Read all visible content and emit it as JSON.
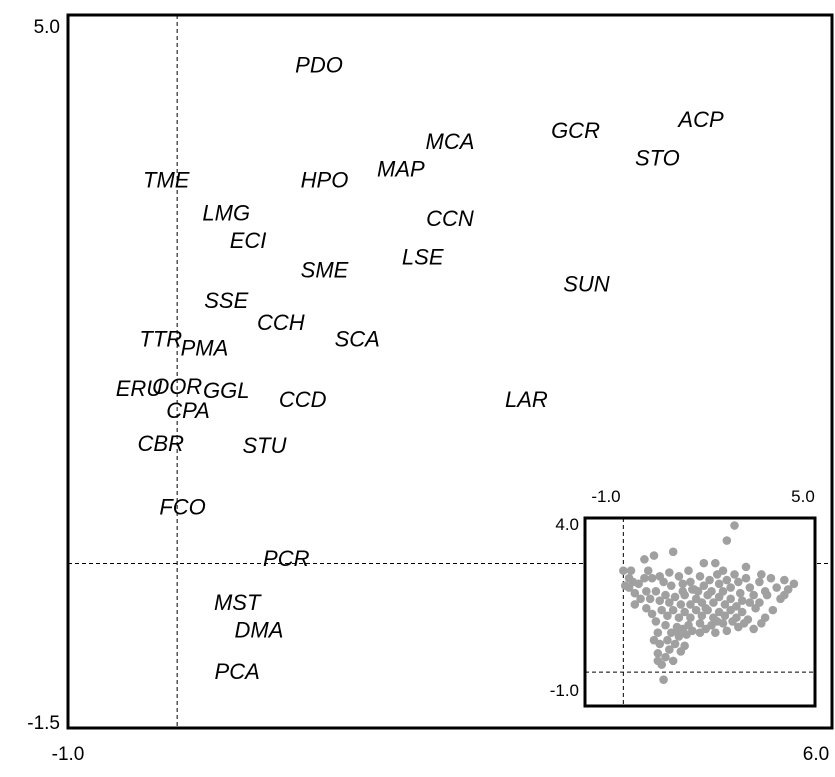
{
  "chart_data": [
    {
      "type": "scatter",
      "title": "",
      "xlabel": "",
      "ylabel": "",
      "xlim": [
        -1.0,
        6.0
      ],
      "ylim": [
        -1.5,
        5.0
      ],
      "x_ticks": [
        "-1.0",
        "6.0"
      ],
      "y_ticks": [
        "-1.5",
        "5.0"
      ],
      "reference_lines": {
        "x": 0.0,
        "y": 0.0
      },
      "marker_style": "text-label",
      "points": [
        {
          "label": "PDO",
          "x": 1.3,
          "y": 4.55
        },
        {
          "label": "ACP",
          "x": 4.8,
          "y": 4.05
        },
        {
          "label": "GCR",
          "x": 3.65,
          "y": 3.95
        },
        {
          "label": "MCA",
          "x": 2.5,
          "y": 3.85
        },
        {
          "label": "STO",
          "x": 4.4,
          "y": 3.7
        },
        {
          "label": "MAP",
          "x": 2.05,
          "y": 3.6
        },
        {
          "label": "TME",
          "x": -0.1,
          "y": 3.5
        },
        {
          "label": "HPO",
          "x": 1.35,
          "y": 3.5
        },
        {
          "label": "LMG",
          "x": 0.45,
          "y": 3.2
        },
        {
          "label": "CCN",
          "x": 2.5,
          "y": 3.15
        },
        {
          "label": "ECI",
          "x": 0.65,
          "y": 2.95
        },
        {
          "label": "LSE",
          "x": 2.25,
          "y": 2.8
        },
        {
          "label": "SME",
          "x": 1.35,
          "y": 2.68
        },
        {
          "label": "SUN",
          "x": 3.75,
          "y": 2.55
        },
        {
          "label": "SSE",
          "x": 0.45,
          "y": 2.4
        },
        {
          "label": "CCH",
          "x": 0.95,
          "y": 2.2
        },
        {
          "label": "TTR",
          "x": -0.15,
          "y": 2.05
        },
        {
          "label": "SCA",
          "x": 1.65,
          "y": 2.05
        },
        {
          "label": "PMA",
          "x": 0.25,
          "y": 1.97
        },
        {
          "label": "ERU",
          "x": -0.35,
          "y": 1.6
        },
        {
          "label": "OOR",
          "x": 0.0,
          "y": 1.62
        },
        {
          "label": "GGL",
          "x": 0.45,
          "y": 1.58
        },
        {
          "label": "CCD",
          "x": 1.15,
          "y": 1.5
        },
        {
          "label": "LAR",
          "x": 3.2,
          "y": 1.5
        },
        {
          "label": "CPA",
          "x": 0.1,
          "y": 1.4
        },
        {
          "label": "CBR",
          "x": -0.15,
          "y": 1.1
        },
        {
          "label": "STU",
          "x": 0.8,
          "y": 1.08
        },
        {
          "label": "FCO",
          "x": 0.05,
          "y": 0.52
        },
        {
          "label": "PCR",
          "x": 1.0,
          "y": 0.05
        },
        {
          "label": "MST",
          "x": 0.55,
          "y": -0.35
        },
        {
          "label": "DMA",
          "x": 0.75,
          "y": -0.6
        },
        {
          "label": "PCA",
          "x": 0.55,
          "y": -0.98
        }
      ]
    },
    {
      "type": "scatter",
      "title": "",
      "xlim": [
        -1.0,
        5.0
      ],
      "ylim": [
        -1.0,
        4.0
      ],
      "x_ticks": [
        "-1.0",
        "5.0"
      ],
      "y_ticks": [
        "4.0",
        "-1.0"
      ],
      "reference_lines": {
        "x": 0.0,
        "y": -0.1
      },
      "marker_color": "#a0a0a0",
      "points": [
        {
          "x": 2.9,
          "y": 3.8
        },
        {
          "x": 2.7,
          "y": 3.4
        },
        {
          "x": 1.3,
          "y": 3.1
        },
        {
          "x": 0.8,
          "y": 3.0
        },
        {
          "x": 2.4,
          "y": 2.8
        },
        {
          "x": 2.1,
          "y": 2.8
        },
        {
          "x": 3.2,
          "y": 2.7
        },
        {
          "x": 2.6,
          "y": 2.6
        },
        {
          "x": 3.6,
          "y": 2.5
        },
        {
          "x": 0.55,
          "y": 2.9
        },
        {
          "x": 0.2,
          "y": 2.6
        },
        {
          "x": 0.0,
          "y": 2.6
        },
        {
          "x": 0.15,
          "y": 2.4
        },
        {
          "x": 0.4,
          "y": 2.25
        },
        {
          "x": 0.55,
          "y": 2.4
        },
        {
          "x": 0.65,
          "y": 2.6
        },
        {
          "x": 0.75,
          "y": 2.4
        },
        {
          "x": 0.95,
          "y": 2.45
        },
        {
          "x": 1.05,
          "y": 2.3
        },
        {
          "x": 1.2,
          "y": 2.55
        },
        {
          "x": 1.25,
          "y": 2.2
        },
        {
          "x": 1.45,
          "y": 2.45
        },
        {
          "x": 1.55,
          "y": 2.25
        },
        {
          "x": 1.7,
          "y": 2.6
        },
        {
          "x": 1.75,
          "y": 2.3
        },
        {
          "x": 1.85,
          "y": 2.1
        },
        {
          "x": 2.0,
          "y": 2.45
        },
        {
          "x": 2.1,
          "y": 2.2
        },
        {
          "x": 2.25,
          "y": 2.35
        },
        {
          "x": 2.3,
          "y": 2.05
        },
        {
          "x": 2.45,
          "y": 2.5
        },
        {
          "x": 2.5,
          "y": 2.25
        },
        {
          "x": 2.6,
          "y": 2.05
        },
        {
          "x": 2.7,
          "y": 2.35
        },
        {
          "x": 2.8,
          "y": 2.15
        },
        {
          "x": 2.9,
          "y": 2.5
        },
        {
          "x": 3.0,
          "y": 2.3
        },
        {
          "x": 3.05,
          "y": 2.0
        },
        {
          "x": 3.2,
          "y": 2.4
        },
        {
          "x": 3.3,
          "y": 2.15
        },
        {
          "x": 3.4,
          "y": 1.95
        },
        {
          "x": 3.55,
          "y": 2.3
        },
        {
          "x": 3.7,
          "y": 2.05
        },
        {
          "x": 3.85,
          "y": 2.4
        },
        {
          "x": 4.0,
          "y": 2.15
        },
        {
          "x": 4.2,
          "y": 2.35
        },
        {
          "x": 4.45,
          "y": 2.25
        },
        {
          "x": 4.1,
          "y": 1.85
        },
        {
          "x": 3.9,
          "y": 1.55
        },
        {
          "x": 3.7,
          "y": 1.35
        },
        {
          "x": 3.45,
          "y": 1.6
        },
        {
          "x": 3.3,
          "y": 1.75
        },
        {
          "x": 3.1,
          "y": 1.8
        },
        {
          "x": 2.95,
          "y": 1.65
        },
        {
          "x": 2.8,
          "y": 1.85
        },
        {
          "x": 2.65,
          "y": 1.7
        },
        {
          "x": 2.5,
          "y": 1.9
        },
        {
          "x": 2.35,
          "y": 1.75
        },
        {
          "x": 2.2,
          "y": 1.95
        },
        {
          "x": 2.05,
          "y": 1.75
        },
        {
          "x": 1.9,
          "y": 1.85
        },
        {
          "x": 1.75,
          "y": 1.7
        },
        {
          "x": 1.6,
          "y": 1.95
        },
        {
          "x": 1.5,
          "y": 1.7
        },
        {
          "x": 1.35,
          "y": 1.9
        },
        {
          "x": 1.2,
          "y": 1.75
        },
        {
          "x": 1.1,
          "y": 1.95
        },
        {
          "x": 0.95,
          "y": 1.8
        },
        {
          "x": 0.85,
          "y": 2.05
        },
        {
          "x": 0.7,
          "y": 1.85
        },
        {
          "x": 0.6,
          "y": 2.05
        },
        {
          "x": 0.3,
          "y": 2.0
        },
        {
          "x": 0.45,
          "y": 1.85
        },
        {
          "x": 1.0,
          "y": 1.55
        },
        {
          "x": 1.15,
          "y": 1.4
        },
        {
          "x": 1.3,
          "y": 1.55
        },
        {
          "x": 1.45,
          "y": 1.35
        },
        {
          "x": 1.6,
          "y": 1.5
        },
        {
          "x": 1.75,
          "y": 1.35
        },
        {
          "x": 1.9,
          "y": 1.55
        },
        {
          "x": 2.05,
          "y": 1.4
        },
        {
          "x": 2.2,
          "y": 1.55
        },
        {
          "x": 2.35,
          "y": 1.35
        },
        {
          "x": 2.5,
          "y": 1.5
        },
        {
          "x": 2.65,
          "y": 1.4
        },
        {
          "x": 2.8,
          "y": 1.55
        },
        {
          "x": 2.95,
          "y": 1.35
        },
        {
          "x": 3.1,
          "y": 1.5
        },
        {
          "x": 3.25,
          "y": 1.3
        },
        {
          "x": 2.6,
          "y": 1.2
        },
        {
          "x": 2.3,
          "y": 1.15
        },
        {
          "x": 2.0,
          "y": 1.2
        },
        {
          "x": 1.7,
          "y": 1.15
        },
        {
          "x": 1.4,
          "y": 1.1
        },
        {
          "x": 1.1,
          "y": 1.15
        },
        {
          "x": 1.25,
          "y": 0.95
        },
        {
          "x": 1.45,
          "y": 0.85
        },
        {
          "x": 1.15,
          "y": 0.75
        },
        {
          "x": 1.35,
          "y": 0.65
        },
        {
          "x": 0.95,
          "y": 0.65
        },
        {
          "x": 1.2,
          "y": 0.5
        },
        {
          "x": 1.5,
          "y": 0.45
        },
        {
          "x": 0.9,
          "y": 0.4
        },
        {
          "x": 1.1,
          "y": 0.3
        },
        {
          "x": 1.3,
          "y": 0.2
        },
        {
          "x": 1.0,
          "y": 0.1
        },
        {
          "x": 1.45,
          "y": 0.95
        },
        {
          "x": 1.55,
          "y": 1.05
        },
        {
          "x": 1.65,
          "y": 0.9
        },
        {
          "x": 1.8,
          "y": 1.0
        },
        {
          "x": 2.0,
          "y": 0.95
        },
        {
          "x": 2.15,
          "y": 1.05
        },
        {
          "x": 2.4,
          "y": 0.95
        },
        {
          "x": 2.7,
          "y": 1.0
        },
        {
          "x": 3.4,
          "y": 1.05
        },
        {
          "x": 3.6,
          "y": 1.2
        },
        {
          "x": 1.05,
          "y": -0.3
        },
        {
          "x": 0.6,
          "y": 1.6
        },
        {
          "x": 0.75,
          "y": 1.45
        },
        {
          "x": 0.85,
          "y": 1.25
        },
        {
          "x": 0.3,
          "y": 1.7
        },
        {
          "x": 0.15,
          "y": 2.15
        },
        {
          "x": 0.05,
          "y": 2.2
        },
        {
          "x": 0.25,
          "y": 2.3
        },
        {
          "x": 1.95,
          "y": 2.05
        },
        {
          "x": 2.15,
          "y": 1.6
        },
        {
          "x": 2.45,
          "y": 1.25
        },
        {
          "x": 2.85,
          "y": 1.25
        },
        {
          "x": 3.0,
          "y": 1.1
        },
        {
          "x": 3.15,
          "y": 1.2
        },
        {
          "x": 3.75,
          "y": 1.95
        },
        {
          "x": 4.2,
          "y": 1.95
        },
        {
          "x": 4.3,
          "y": 2.1
        },
        {
          "x": 3.55,
          "y": 1.75
        },
        {
          "x": 1.8,
          "y": 2.1
        },
        {
          "x": 1.55,
          "y": 2.05
        },
        {
          "x": 0.9,
          "y": 0.95
        },
        {
          "x": 0.8,
          "y": 0.75
        },
        {
          "x": 1.6,
          "y": 0.6
        },
        {
          "x": 0.9,
          "y": 0.2
        }
      ]
    }
  ]
}
